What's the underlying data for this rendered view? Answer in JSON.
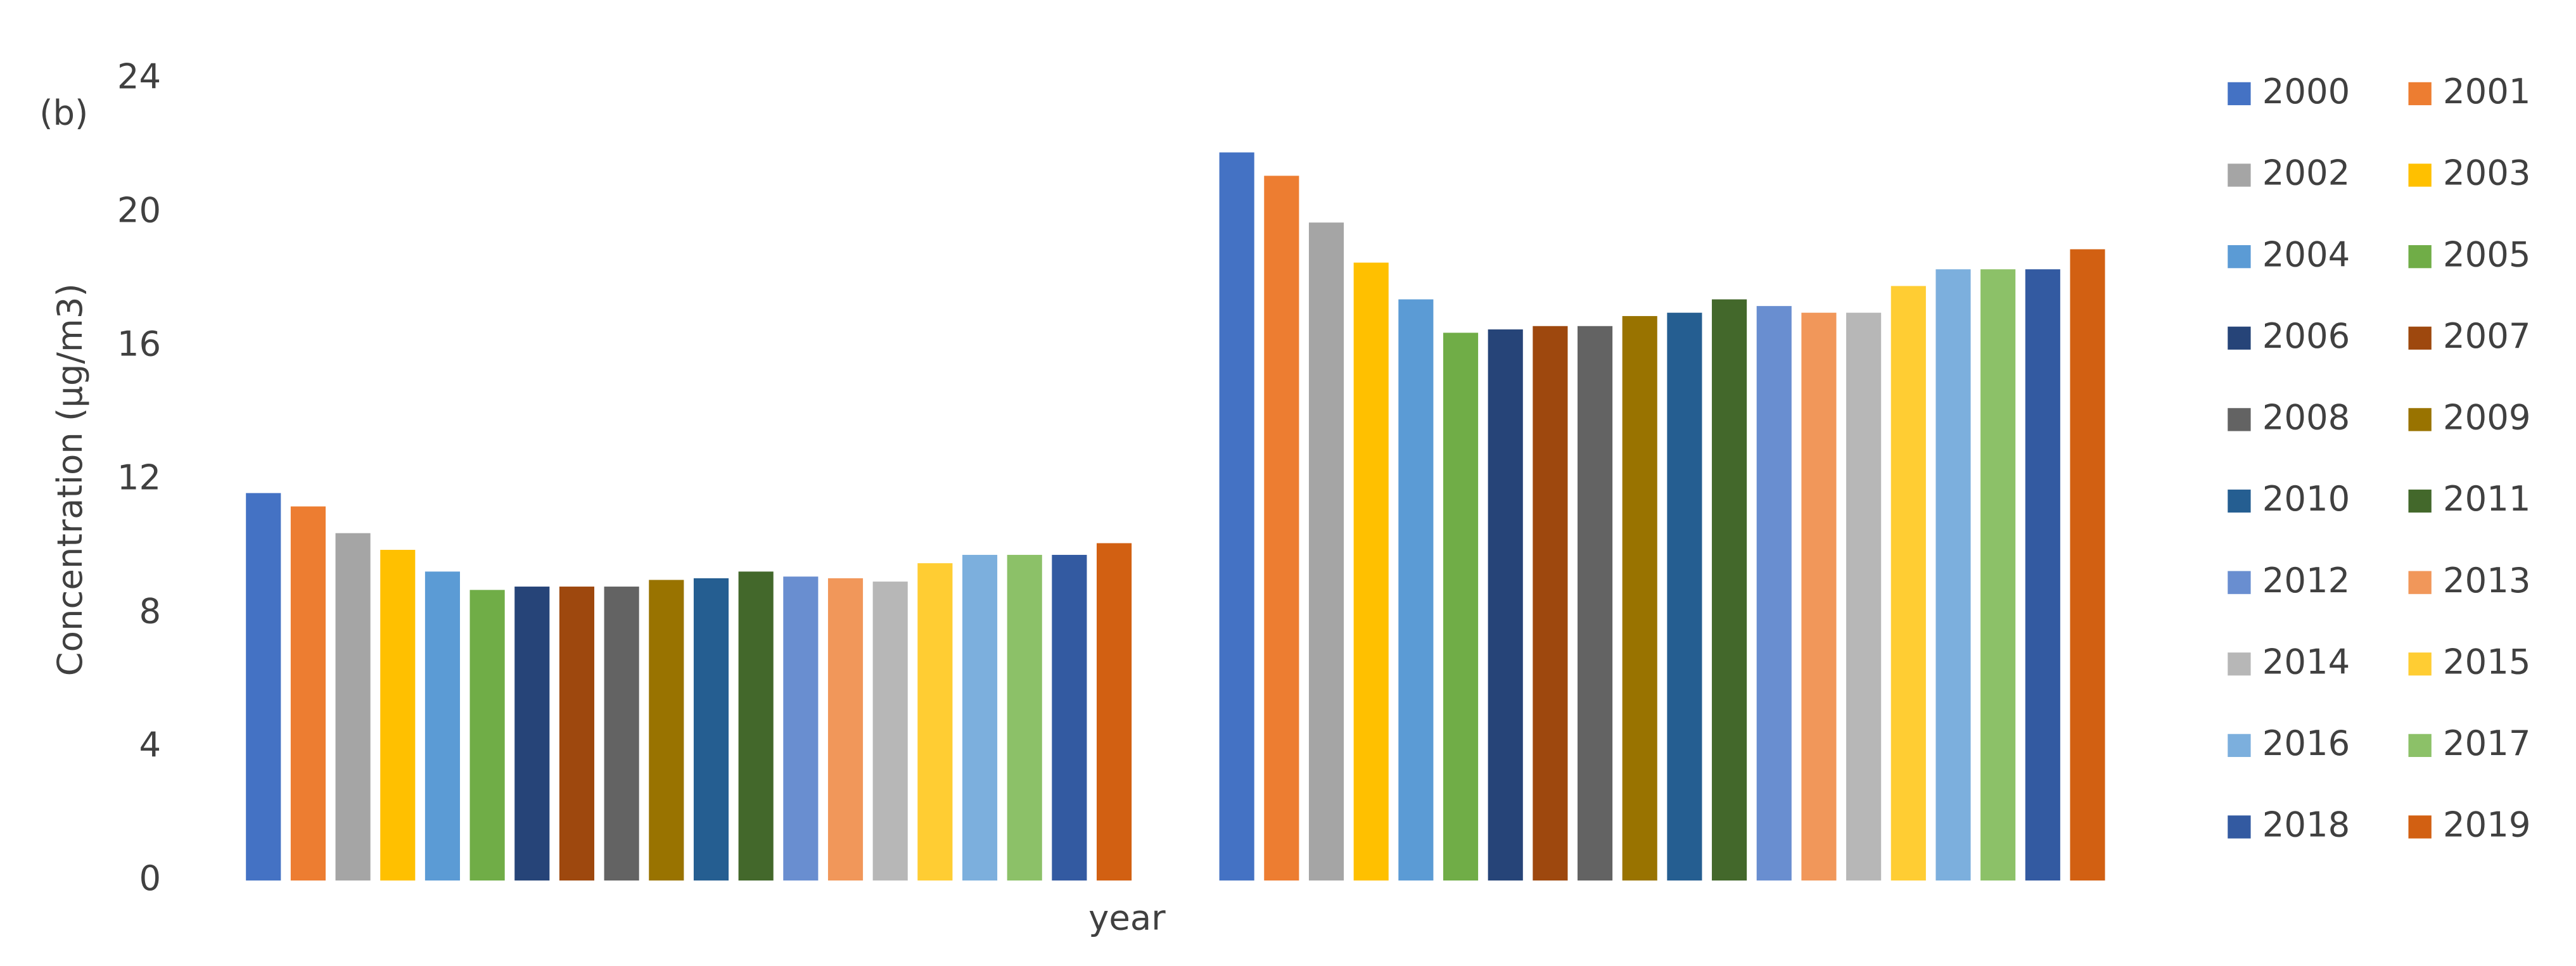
{
  "chart_data": {
    "type": "bar",
    "annotation": "(b)",
    "y_label": "Concentration (μg/m3)",
    "x_label": "year",
    "categories": [
      null,
      null
    ],
    "ylim": [
      0,
      24
    ],
    "yticks": [
      0,
      4,
      8,
      12,
      16,
      20,
      24
    ],
    "grid": false,
    "legend": "right",
    "series": [
      {
        "name": "2000",
        "color": "#4472c4",
        "values": [
          11.6,
          21.8
        ]
      },
      {
        "name": "2001",
        "color": "#ed7d31",
        "values": [
          11.2,
          21.1
        ]
      },
      {
        "name": "2002",
        "color": "#a5a5a5",
        "values": [
          10.4,
          19.7
        ]
      },
      {
        "name": "2003",
        "color": "#ffc000",
        "values": [
          9.9,
          18.5
        ]
      },
      {
        "name": "2004",
        "color": "#5b9bd5",
        "values": [
          9.25,
          17.4
        ]
      },
      {
        "name": "2005",
        "color": "#70ad47",
        "values": [
          8.7,
          16.4
        ]
      },
      {
        "name": "2006",
        "color": "#264478",
        "values": [
          8.8,
          16.5
        ]
      },
      {
        "name": "2007",
        "color": "#9e480e",
        "values": [
          8.8,
          16.6
        ]
      },
      {
        "name": "2008",
        "color": "#636363",
        "values": [
          8.8,
          16.6
        ]
      },
      {
        "name": "2009",
        "color": "#997300",
        "values": [
          9.0,
          16.9
        ]
      },
      {
        "name": "2010",
        "color": "#255e91",
        "values": [
          9.05,
          17.0
        ]
      },
      {
        "name": "2011",
        "color": "#43682b",
        "values": [
          9.25,
          17.4
        ]
      },
      {
        "name": "2012",
        "color": "#698ed0",
        "values": [
          9.1,
          17.2
        ]
      },
      {
        "name": "2013",
        "color": "#f1975a",
        "values": [
          9.05,
          17.0
        ]
      },
      {
        "name": "2014",
        "color": "#b7b7b7",
        "values": [
          8.95,
          17.0
        ]
      },
      {
        "name": "2015",
        "color": "#ffcd33",
        "values": [
          9.5,
          17.8
        ]
      },
      {
        "name": "2016",
        "color": "#7cafdd",
        "values": [
          9.75,
          18.3
        ]
      },
      {
        "name": "2017",
        "color": "#8cc168",
        "values": [
          9.75,
          18.3
        ]
      },
      {
        "name": "2018",
        "color": "#335aa1",
        "values": [
          9.75,
          18.3
        ]
      },
      {
        "name": "2019",
        "color": "#d26012",
        "values": [
          10.1,
          18.9
        ]
      }
    ]
  }
}
